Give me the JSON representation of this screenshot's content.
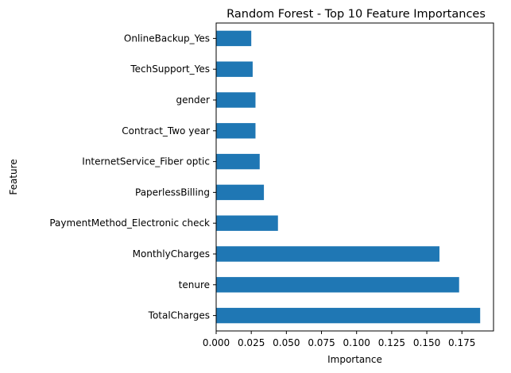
{
  "chart_data": {
    "type": "bar",
    "orientation": "horizontal",
    "title": "Random Forest - Top 10 Feature Importances",
    "xlabel": "Importance",
    "ylabel": "Feature",
    "categories": [
      "TotalCharges",
      "tenure",
      "MonthlyCharges",
      "PaymentMethod_Electronic check",
      "PaperlessBilling",
      "InternetService_Fiber optic",
      "Contract_Two year",
      "gender",
      "TechSupport_Yes",
      "OnlineBackup_Yes"
    ],
    "values": [
      0.188,
      0.173,
      0.159,
      0.044,
      0.034,
      0.031,
      0.028,
      0.028,
      0.026,
      0.025
    ],
    "xlim": [
      0,
      0.1975
    ],
    "xticks": [
      "0.000",
      "0.025",
      "0.050",
      "0.075",
      "0.100",
      "0.125",
      "0.150",
      "0.175"
    ],
    "grid": false,
    "bar_color": "#1f77b4"
  }
}
